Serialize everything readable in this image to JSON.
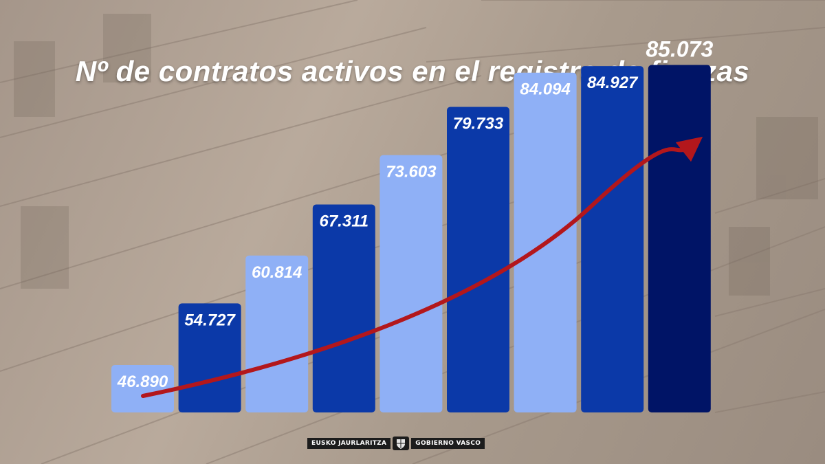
{
  "footer": {
    "left_text": "EUSKO JAURLARITZA",
    "right_text": "GOBIERNO VASCO",
    "emblem_icon": "coat-of-arms-icon"
  },
  "colors": {
    "light_bar": "#8fb0f6",
    "medium_bar": "#0b39a8",
    "dark_bar": "#001466",
    "arrow": "#b3171c"
  },
  "chart_data": {
    "type": "bar",
    "title": "Nº de contratos activos en el registro de fianzas",
    "categories": [],
    "values": [
      46890,
      54727,
      60814,
      67311,
      73603,
      79733,
      84094,
      84927,
      85073
    ],
    "labels": [
      "46.890",
      "54.727",
      "60.814",
      "67.311",
      "73.603",
      "79.733",
      "84.094",
      "84.927",
      "85.073"
    ],
    "bar_styles": [
      "light",
      "medium",
      "light",
      "medium",
      "light",
      "medium",
      "light",
      "medium",
      "dark"
    ],
    "trend_arrow": true,
    "grid": false,
    "legend": "none",
    "ylim": [
      0,
      85073
    ]
  }
}
